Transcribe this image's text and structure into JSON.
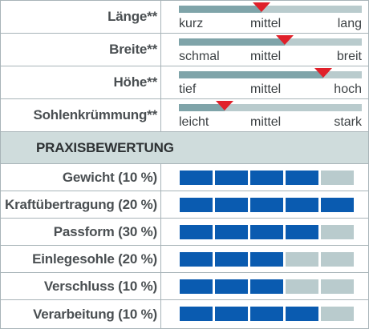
{
  "scales": [
    {
      "label": "Länge**",
      "left": "kurz",
      "mid": "mittel",
      "right": "lang",
      "value": 0.45
    },
    {
      "label": "Breite**",
      "left": "schmal",
      "mid": "mittel",
      "right": "breit",
      "value": 0.58
    },
    {
      "label": "Höhe**",
      "left": "tief",
      "mid": "mittel",
      "right": "hoch",
      "value": 0.79
    },
    {
      "label": "Sohlenkrümmung**",
      "left": "leicht",
      "mid": "mittel",
      "right": "stark",
      "value": 0.25
    }
  ],
  "section": {
    "title": "PRAXISBEWERTUNG"
  },
  "ratings": [
    {
      "label": "Gewicht (10 %)",
      "score": 4,
      "max": 5
    },
    {
      "label": "Kraftübertragung (20 %)",
      "score": 5,
      "max": 5
    },
    {
      "label": "Passform (30 %)",
      "score": 4,
      "max": 5
    },
    {
      "label": "Einlegesohle (20 %)",
      "score": 3,
      "max": 5
    },
    {
      "label": "Verschluss (10 %)",
      "score": 3,
      "max": 5
    },
    {
      "label": "Verarbeitung (10 %)",
      "score": 4,
      "max": 5
    }
  ],
  "colors": {
    "bar_on": "#0a5bb0",
    "bar_off": "#b9cbcd",
    "marker": "#e0202a",
    "header_bg": "#cfdcdc"
  }
}
